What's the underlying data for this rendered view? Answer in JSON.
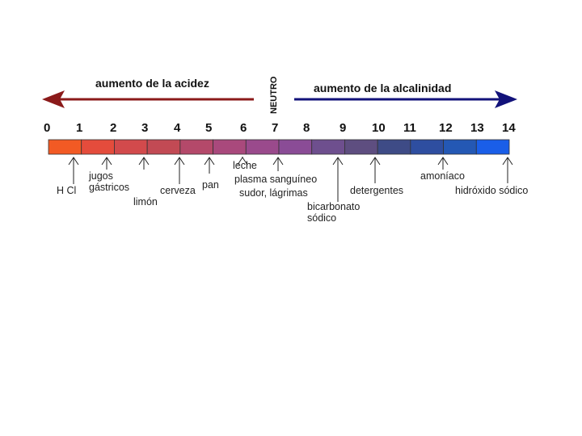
{
  "acid_label": "aumento de la acidez",
  "neutral_label": "NEUTRO",
  "alkaline_label": "aumento de la alcalinidad",
  "scale_numbers": [
    "0",
    "1",
    "2",
    "3",
    "4",
    "5",
    "6",
    "7",
    "8",
    "9",
    "10",
    "11",
    "12",
    "13",
    "14"
  ],
  "colors": {
    "acid_arrow": "#8b1a1a",
    "alkaline_arrow": "#12127a",
    "segments": [
      "#f25a24",
      "#e44c3c",
      "#d24a4c",
      "#c24a54",
      "#b4496a",
      "#a9497c",
      "#9a4a8c",
      "#8a4c96",
      "#6e4f8e",
      "#5e4e80",
      "#3e4b86",
      "#2e4ea0",
      "#2458b4",
      "#1a5ee8"
    ]
  },
  "substances": [
    {
      "label": "H Cl"
    },
    {
      "label": "jugos gástricos"
    },
    {
      "label": "limón"
    },
    {
      "label": "cerveza"
    },
    {
      "label": "pan"
    },
    {
      "label": "leche"
    },
    {
      "label": "plasma sanguíneo"
    },
    {
      "label": "sudor, lágrimas"
    },
    {
      "label": "bicarbonato sódico"
    },
    {
      "label": "detergentes"
    },
    {
      "label": "amoníaco"
    },
    {
      "label": "hidróxido sódico"
    }
  ]
}
